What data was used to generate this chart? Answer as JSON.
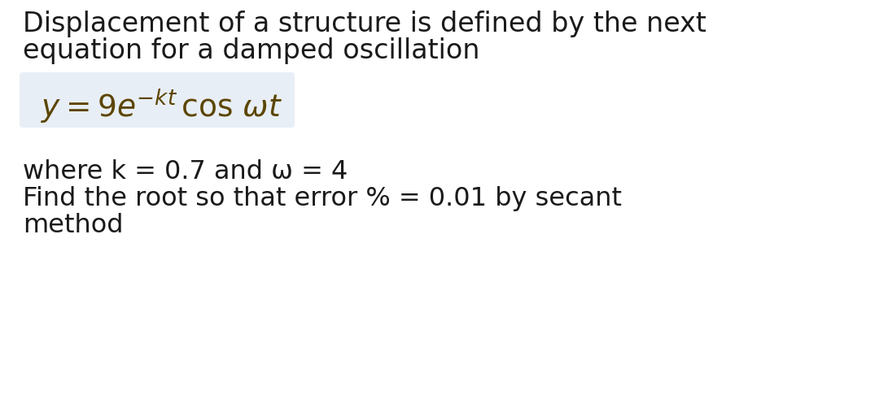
{
  "bg_color": "#ffffff",
  "title_line1": "Displacement of a structure is defined by the next",
  "title_line2": "equation for a damped oscillation",
  "equation_box_color": "#e8eef5",
  "equation_text": "$y = 9e^{-kt}\\,\\cos\\,\\omega t$",
  "body_line1": "where k = 0.7 and ω = 4",
  "body_line2": "Find the root so that error % = 0.01 by secant",
  "body_line3": "method",
  "title_fontsize": 24,
  "body_fontsize": 23,
  "eq_fontsize": 27,
  "text_color": "#1a1a1a",
  "eq_color": "#5c4500"
}
